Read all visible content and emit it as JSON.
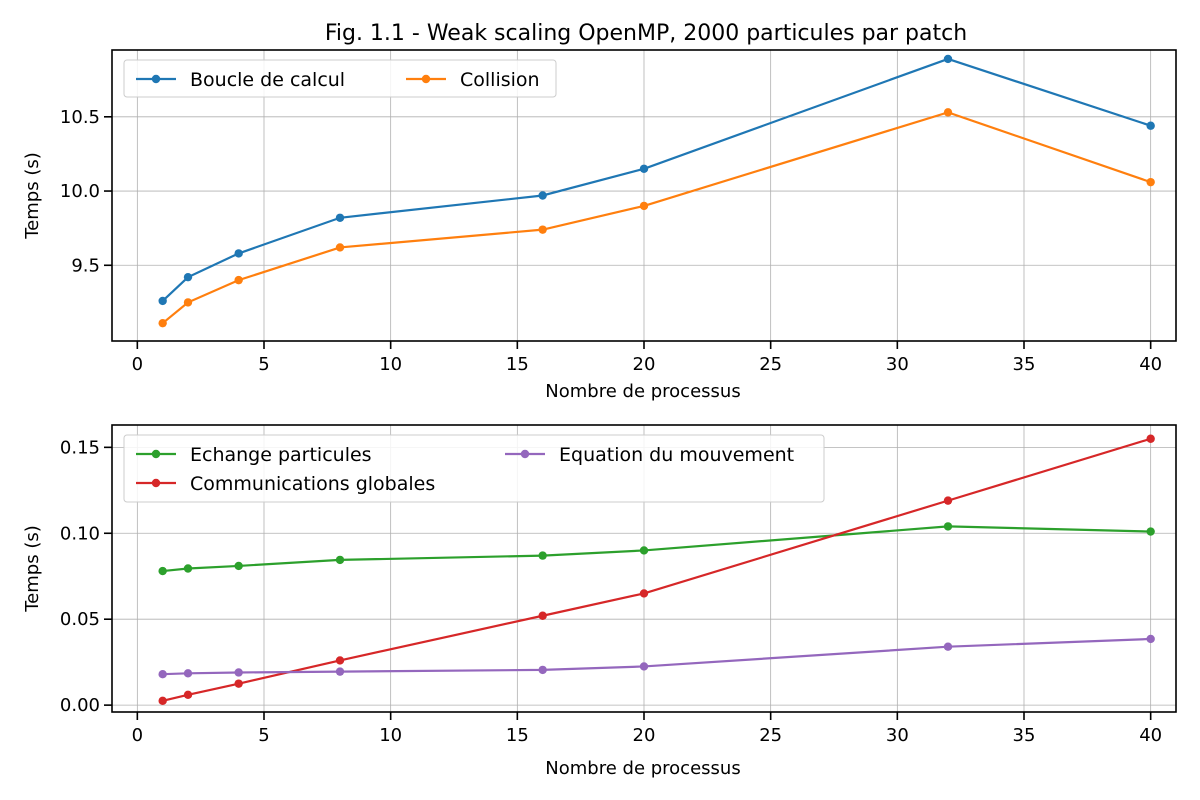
{
  "figure_title": "Fig. 1.1 - Weak scaling OpenMP, 2000 particules par patch",
  "chart_data": [
    {
      "type": "line",
      "title": "Fig. 1.1 - Weak scaling OpenMP, 2000 particules par patch",
      "xlabel": "Nombre de processus",
      "ylabel": "Temps (s)",
      "xlim": [
        -1,
        41
      ],
      "ylim": [
        8.99,
        10.95
      ],
      "x_ticks": [
        0,
        5,
        10,
        15,
        20,
        25,
        30,
        35,
        40
      ],
      "y_ticks": [
        9.5,
        10.0,
        10.5
      ],
      "x_tick_labels": [
        "0",
        "5",
        "10",
        "15",
        "20",
        "25",
        "30",
        "35",
        "40"
      ],
      "y_tick_labels": [
        "9.5",
        "10.0",
        "10.5"
      ],
      "grid": true,
      "legend_placement": "upper-left",
      "legend_columns": 2,
      "x": [
        1,
        2,
        4,
        8,
        16,
        20,
        32,
        40
      ],
      "series": [
        {
          "name": "Boucle de calcul",
          "color": "#1f77b4",
          "values": [
            9.26,
            9.42,
            9.58,
            9.82,
            9.97,
            10.15,
            10.89,
            10.44
          ]
        },
        {
          "name": "Collision",
          "color": "#ff7f0e",
          "values": [
            9.11,
            9.25,
            9.4,
            9.62,
            9.74,
            9.9,
            10.53,
            10.06
          ]
        }
      ]
    },
    {
      "type": "line",
      "xlabel": "Nombre de processus",
      "ylabel": "Temps (s)",
      "xlim": [
        -1,
        41
      ],
      "ylim": [
        -0.004,
        0.163
      ],
      "x_ticks": [
        0,
        5,
        10,
        15,
        20,
        25,
        30,
        35,
        40
      ],
      "y_ticks": [
        0.0,
        0.05,
        0.1,
        0.15
      ],
      "x_tick_labels": [
        "0",
        "5",
        "10",
        "15",
        "20",
        "25",
        "30",
        "35",
        "40"
      ],
      "y_tick_labels": [
        "0.00",
        "0.05",
        "0.10",
        "0.15"
      ],
      "grid": true,
      "legend_placement": "upper-left",
      "legend_columns": 2,
      "x": [
        1,
        2,
        4,
        8,
        16,
        20,
        32,
        40
      ],
      "series": [
        {
          "name": "Echange particules",
          "color": "#2ca02c",
          "values": [
            0.078,
            0.0795,
            0.081,
            0.0845,
            0.087,
            0.09,
            0.104,
            0.101
          ]
        },
        {
          "name": "Communications globales",
          "color": "#d62728",
          "values": [
            0.0025,
            0.006,
            0.0125,
            0.026,
            0.052,
            0.065,
            0.119,
            0.155
          ]
        },
        {
          "name": "Equation du mouvement",
          "color": "#9467bd",
          "values": [
            0.018,
            0.0185,
            0.019,
            0.0195,
            0.0205,
            0.0225,
            0.034,
            0.0385
          ]
        }
      ]
    }
  ]
}
